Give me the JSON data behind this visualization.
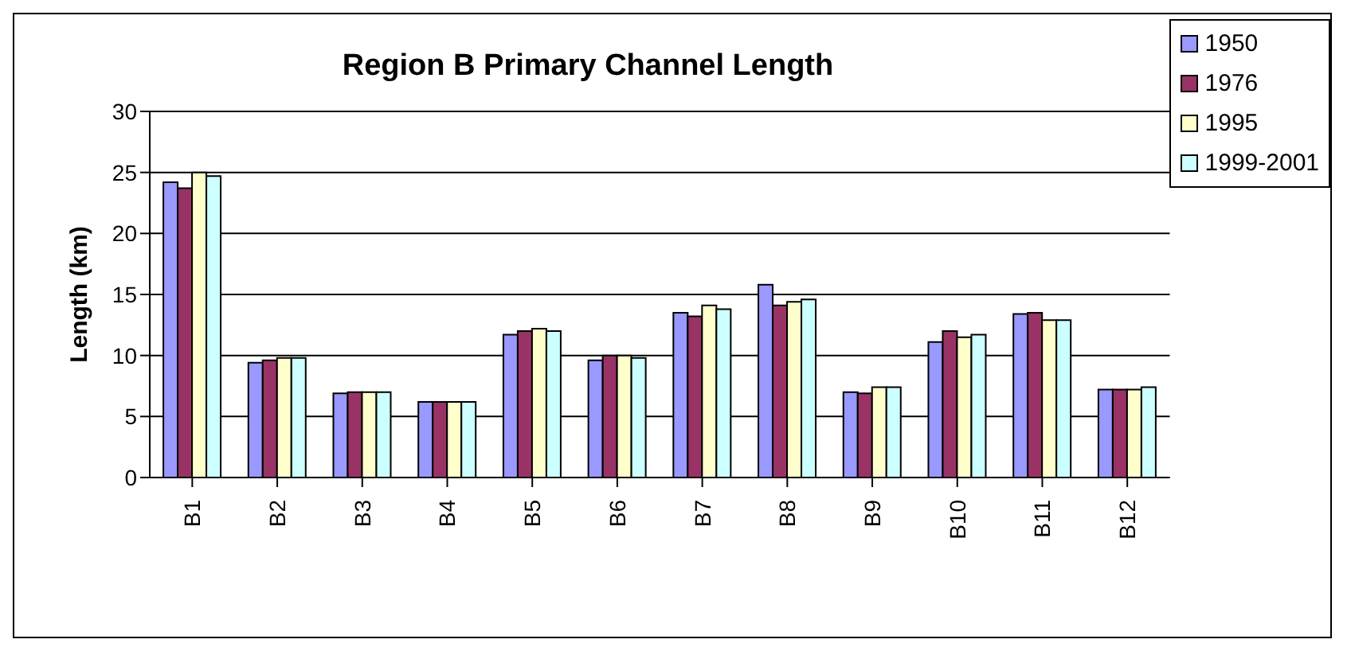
{
  "chart_data": {
    "type": "bar",
    "title": "Region B Primary Channel Length",
    "ylabel": "Length (km)",
    "categories": [
      "B1",
      "B2",
      "B3",
      "B4",
      "B5",
      "B6",
      "B7",
      "B8",
      "B9",
      "B10",
      "B11",
      "B12"
    ],
    "series": [
      {
        "name": "1950",
        "color": "#9999ff",
        "values": [
          24.2,
          9.4,
          6.9,
          6.2,
          11.7,
          9.6,
          13.5,
          15.8,
          7.0,
          11.1,
          13.4,
          7.2
        ]
      },
      {
        "name": "1976",
        "color": "#993366",
        "values": [
          23.7,
          9.6,
          7.0,
          6.2,
          12.0,
          10.0,
          13.2,
          14.1,
          6.9,
          12.0,
          13.5,
          7.2
        ]
      },
      {
        "name": "1995",
        "color": "#ffffcc",
        "values": [
          25.0,
          9.8,
          7.0,
          6.2,
          12.2,
          10.0,
          14.1,
          14.4,
          7.4,
          11.5,
          12.9,
          7.2
        ]
      },
      {
        "name": "1999-2001",
        "color": "#ccffff",
        "values": [
          24.7,
          9.8,
          7.0,
          6.2,
          12.0,
          9.8,
          13.8,
          14.6,
          7.4,
          11.7,
          12.9,
          7.4
        ]
      }
    ],
    "ylim": [
      0,
      30
    ],
    "yticks": [
      0,
      5,
      10,
      15,
      20,
      25,
      30
    ],
    "grid": "y",
    "legend": "top right"
  }
}
